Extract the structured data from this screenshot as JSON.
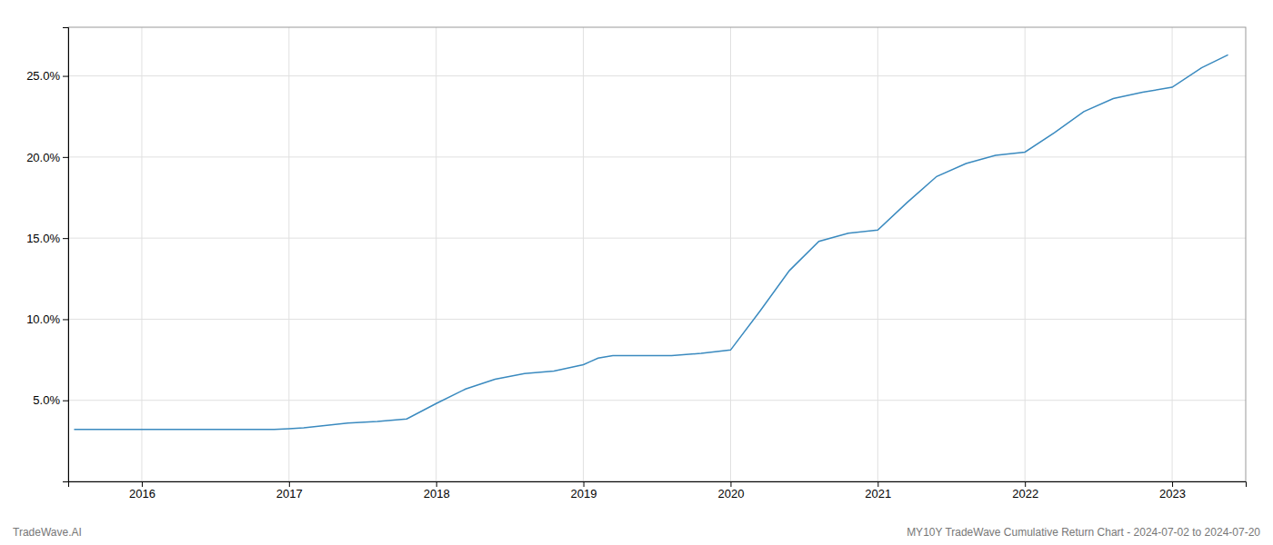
{
  "chart_data": {
    "type": "line",
    "x": [
      2015.54,
      2016.0,
      2016.3,
      2016.6,
      2016.9,
      2017.0,
      2017.1,
      2017.2,
      2017.4,
      2017.6,
      2017.8,
      2018.0,
      2018.2,
      2018.4,
      2018.6,
      2018.8,
      2019.0,
      2019.05,
      2019.1,
      2019.2,
      2019.4,
      2019.6,
      2019.8,
      2020.0,
      2020.2,
      2020.4,
      2020.6,
      2020.8,
      2021.0,
      2021.2,
      2021.4,
      2021.6,
      2021.8,
      2022.0,
      2022.2,
      2022.4,
      2022.6,
      2022.8,
      2023.0,
      2023.2,
      2023.38
    ],
    "values": [
      3.2,
      3.2,
      3.2,
      3.2,
      3.2,
      3.25,
      3.3,
      3.4,
      3.6,
      3.7,
      3.85,
      4.8,
      5.7,
      6.3,
      6.65,
      6.8,
      7.2,
      7.4,
      7.6,
      7.75,
      7.75,
      7.75,
      7.9,
      8.1,
      10.5,
      13.0,
      14.8,
      15.3,
      15.5,
      17.2,
      18.8,
      19.6,
      20.1,
      20.3,
      21.5,
      22.8,
      23.6,
      24.0,
      24.3,
      25.5,
      26.3
    ],
    "color": "#3a8abf",
    "xlim": [
      2015.5,
      2023.5
    ],
    "ylim": [
      0,
      28
    ],
    "xticks": [
      2016,
      2017,
      2018,
      2019,
      2020,
      2021,
      2022,
      2023
    ],
    "yticks": [
      {
        "value": 5.0,
        "label": "5.0%"
      },
      {
        "value": 10.0,
        "label": "10.0%"
      },
      {
        "value": 15.0,
        "label": "15.0%"
      },
      {
        "value": 20.0,
        "label": "20.0%"
      },
      {
        "value": 25.0,
        "label": "25.0%"
      }
    ],
    "grid": true,
    "annotations": [
      "TradeWave.AI",
      "MY10Y TradeWave Cumulative Return Chart - 2024-07-02 to 2024-07-20"
    ]
  }
}
